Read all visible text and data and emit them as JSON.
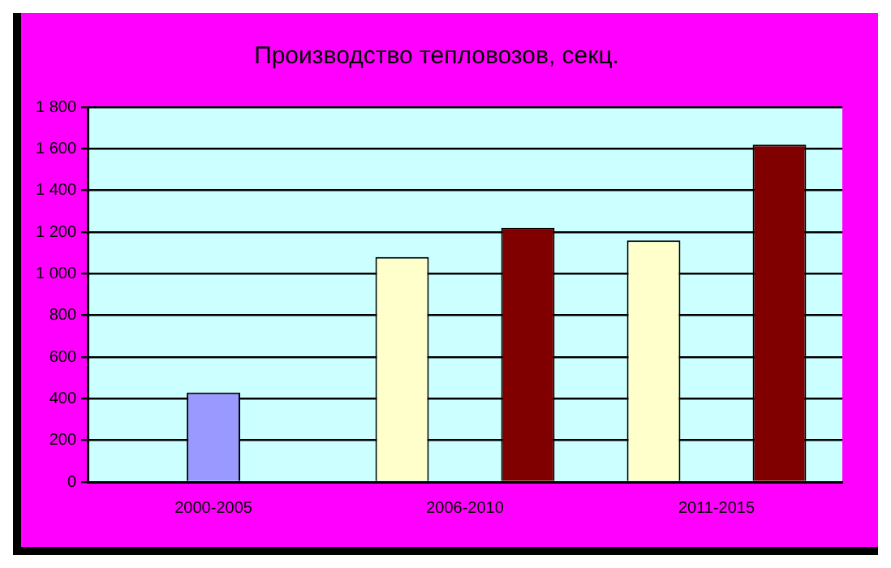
{
  "chart_data": {
    "type": "bar",
    "title": "Производство тепловозов, секц.",
    "categories": [
      "2000-2005",
      "2006-2010",
      "2011-2015"
    ],
    "series": [
      {
        "color": "#ffffcc",
        "values": [
          null,
          1080,
          1160
        ]
      },
      {
        "color": "#9999ff",
        "values": [
          430,
          null,
          null
        ]
      },
      {
        "color": "#800000",
        "values": [
          null,
          1220,
          1620
        ]
      }
    ],
    "ylim": [
      0,
      1800
    ],
    "yticks": [
      0,
      200,
      400,
      600,
      800,
      {
        "value": 1000,
        "label": "1 000"
      },
      {
        "value": 1200,
        "label": "1 200"
      },
      {
        "value": 1400,
        "label": "1 400"
      },
      {
        "value": 1600,
        "label": "1 600"
      },
      {
        "value": 1800,
        "label": "1 800"
      }
    ],
    "grid": "y",
    "legend": false
  }
}
